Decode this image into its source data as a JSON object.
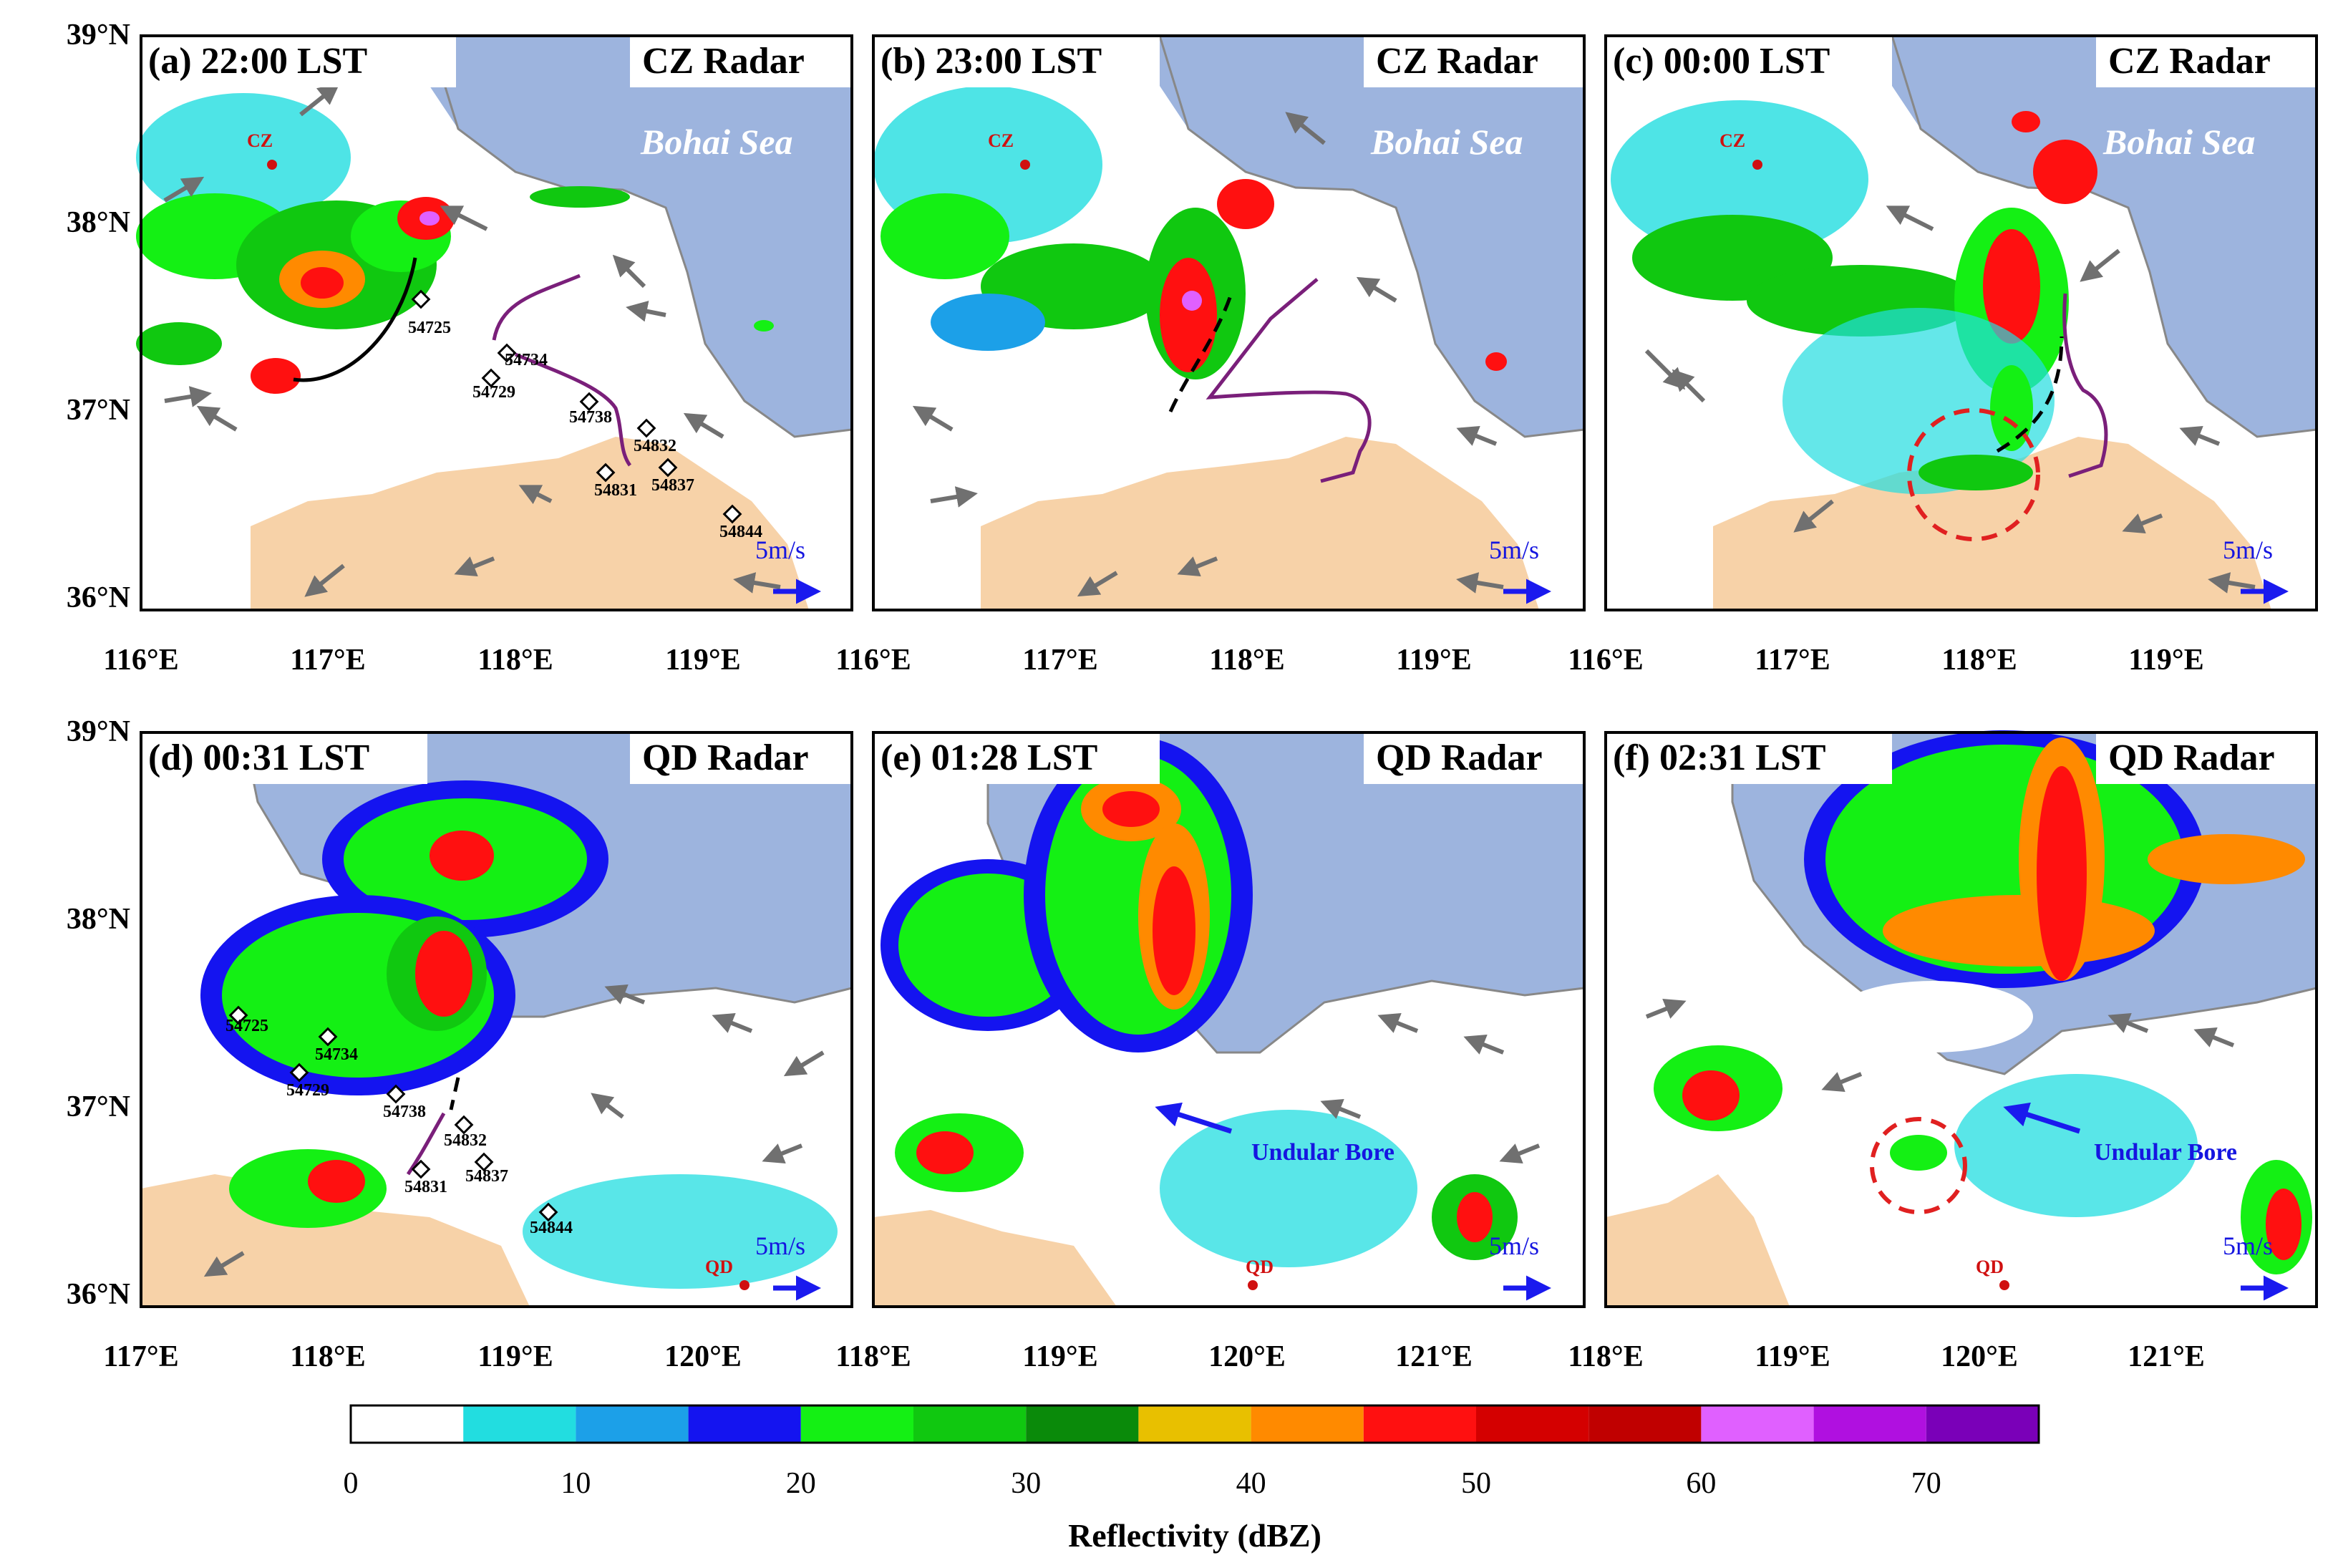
{
  "colors": {
    "sea": "#9db4de",
    "land_shade": "#f7d2a8",
    "coast": "#999999",
    "station_line": "#7a1f7a",
    "gust_front": "#000000",
    "circle": "#e02020",
    "arrow_ref": "#1a1aee",
    "vector": "#707070"
  },
  "panels": [
    {
      "title": "(a) 22:00 LST",
      "radar": "CZ Radar",
      "sea_label": "Bohai Sea",
      "radar_site": "CZ",
      "xticks": [
        "116°E",
        "117°E",
        "118°E",
        "119°E"
      ],
      "yticks": [
        "39°N",
        "38°N",
        "37°N",
        "36°N"
      ],
      "stations": [
        "54725",
        "54734",
        "54729",
        "54738",
        "54832",
        "54831",
        "54837",
        "54844"
      ],
      "ref_vector": "5m/s"
    },
    {
      "title": "(b) 23:00 LST",
      "radar": "CZ Radar",
      "sea_label": "Bohai Sea",
      "radar_site": "CZ",
      "xticks": [
        "116°E",
        "117°E",
        "118°E",
        "119°E"
      ],
      "ref_vector": "5m/s"
    },
    {
      "title": "(c) 00:00 LST",
      "radar": "CZ Radar",
      "sea_label": "Bohai Sea",
      "radar_site": "CZ",
      "xticks": [
        "116°E",
        "117°E",
        "118°E",
        "119°E"
      ],
      "ref_vector": "5m/s"
    },
    {
      "title": "(d) 00:31 LST",
      "radar": "QD Radar",
      "radar_site": "QD",
      "xticks": [
        "117°E",
        "118°E",
        "119°E",
        "120°E"
      ],
      "yticks": [
        "39°N",
        "38°N",
        "37°N",
        "36°N"
      ],
      "stations": [
        "54725",
        "54734",
        "54729",
        "54738",
        "54832",
        "54831",
        "54837",
        "54844"
      ],
      "ref_vector": "5m/s"
    },
    {
      "title": "(e) 01:28 LST",
      "radar": "QD Radar",
      "radar_site": "QD",
      "annotation": "Undular Bore",
      "xticks": [
        "118°E",
        "119°E",
        "120°E",
        "121°E"
      ],
      "ref_vector": "5m/s"
    },
    {
      "title": "(f) 02:31 LST",
      "radar": "QD Radar",
      "radar_site": "QD",
      "annotation": "Undular Bore",
      "xticks": [
        "118°E",
        "119°E",
        "120°E",
        "121°E"
      ],
      "ref_vector": "5m/s"
    }
  ],
  "colorbar": {
    "label": "Reflectivity (dBZ)",
    "ticks": [
      "0",
      "10",
      "20",
      "30",
      "40",
      "50",
      "60",
      "70"
    ],
    "bins": [
      0,
      5,
      10,
      15,
      20,
      25,
      30,
      35,
      40,
      45,
      50,
      55,
      60,
      65,
      70,
      75
    ],
    "colors": [
      "#ffffff",
      "#22dde0",
      "#1ca0e8",
      "#1414f0",
      "#14f014",
      "#10c810",
      "#0a8a0a",
      "#e8c000",
      "#ff8a00",
      "#ff1010",
      "#d40000",
      "#c00000",
      "#e060ff",
      "#b010e0",
      "#7a00b8"
    ]
  }
}
